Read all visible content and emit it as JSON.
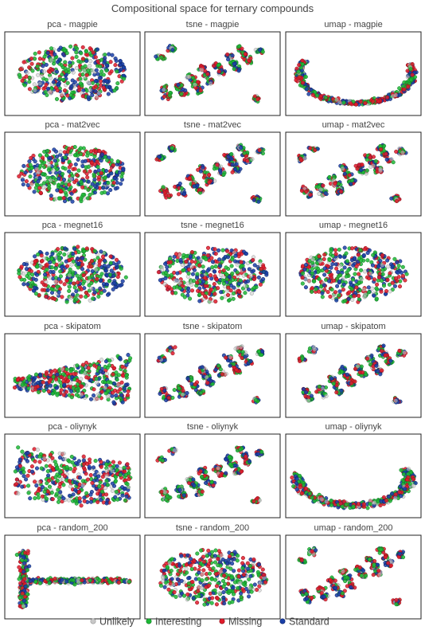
{
  "chart_data": {
    "type": "scatter",
    "title": "Compositional space for ternary compounds",
    "legend": {
      "placement": "bottom",
      "items": [
        {
          "name": "Unlikely",
          "color": "#c8c8c8"
        },
        {
          "name": "Interesting",
          "color": "#1db836"
        },
        {
          "name": "Missing",
          "color": "#e01b2b"
        },
        {
          "name": "Standard",
          "color": "#1a3fa8"
        }
      ]
    },
    "colors": {
      "Unlikely": "#c8c8c8",
      "Interesting": "#1db836",
      "Missing": "#e01b2b",
      "Standard": "#1a3fa8"
    },
    "axes": {
      "ticks": false,
      "grid": false,
      "frame": true
    },
    "panels": [
      {
        "title": "pca - magpie",
        "method": "pca",
        "featurizer": "magpie"
      },
      {
        "title": "tsne - magpie",
        "method": "tsne",
        "featurizer": "magpie"
      },
      {
        "title": "umap - magpie",
        "method": "umap",
        "featurizer": "magpie"
      },
      {
        "title": "pca - mat2vec",
        "method": "pca",
        "featurizer": "mat2vec"
      },
      {
        "title": "tsne - mat2vec",
        "method": "tsne",
        "featurizer": "mat2vec"
      },
      {
        "title": "umap - mat2vec",
        "method": "umap",
        "featurizer": "mat2vec"
      },
      {
        "title": "pca - megnet16",
        "method": "pca",
        "featurizer": "megnet16"
      },
      {
        "title": "tsne - megnet16",
        "method": "tsne",
        "featurizer": "megnet16"
      },
      {
        "title": "umap - megnet16",
        "method": "umap",
        "featurizer": "megnet16"
      },
      {
        "title": "pca - skipatom",
        "method": "pca",
        "featurizer": "skipatom"
      },
      {
        "title": "tsne - skipatom",
        "method": "tsne",
        "featurizer": "skipatom"
      },
      {
        "title": "umap - skipatom",
        "method": "umap",
        "featurizer": "skipatom"
      },
      {
        "title": "pca - oliynyk",
        "method": "pca",
        "featurizer": "oliynyk"
      },
      {
        "title": "tsne - oliynyk",
        "method": "tsne",
        "featurizer": "oliynyk"
      },
      {
        "title": "umap - oliynyk",
        "method": "umap",
        "featurizer": "oliynyk"
      },
      {
        "title": "pca - random_200",
        "method": "pca",
        "featurizer": "random_200"
      },
      {
        "title": "tsne - random_200",
        "method": "tsne",
        "featurizer": "random_200"
      },
      {
        "title": "umap - random_200",
        "method": "umap",
        "featurizer": "random_200"
      }
    ]
  }
}
